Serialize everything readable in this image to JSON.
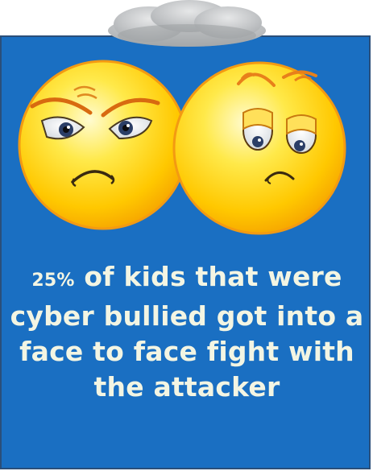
{
  "caption": {
    "percent": "25%",
    "text": " of kids that were cyber bullied got into a face to face fight with the  attacker"
  },
  "colors": {
    "panel_background": "#1a6fc2",
    "panel_border": "#2a4f7a",
    "text": "#f3f5e3",
    "face_fill": "#ffd400",
    "face_outline": "#f0a020",
    "cloud": "#b9bcbf"
  },
  "icons": [
    "cloud-icon",
    "angry-face-icon",
    "sad-face-icon"
  ]
}
